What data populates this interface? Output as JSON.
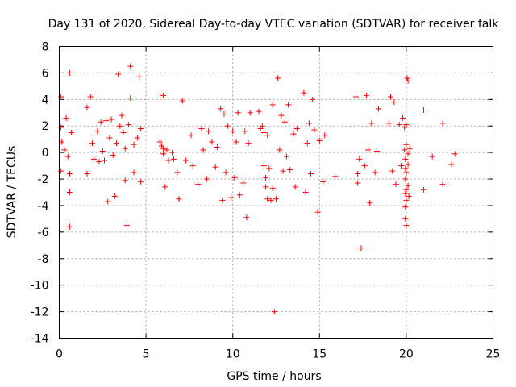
{
  "chart_data": {
    "type": "scatter",
    "title": "Day 131 of 2020, Sidereal Day-to-day VTEC variation (SDTVAR) for receiver falk",
    "xlabel": "GPS time / hours",
    "ylabel": "SDTVAR / TECUs",
    "xlim": [
      0,
      25
    ],
    "ylim": [
      -14,
      8
    ],
    "xticks": [
      0,
      5,
      10,
      15,
      20,
      25
    ],
    "yticks": [
      -14,
      -12,
      -10,
      -8,
      -6,
      -4,
      -2,
      0,
      2,
      4,
      6,
      8
    ],
    "xtick_labels": [
      "0",
      "5",
      "10",
      "15",
      "20",
      "25"
    ],
    "ytick_labels": [
      "-14",
      "-12",
      "-10",
      "-8",
      "-6",
      "-4",
      "-2",
      "0",
      "2",
      "4",
      "6",
      "8"
    ],
    "grid": true,
    "marker": "plus",
    "color": "#ff0000",
    "series": [
      {
        "name": "SDTVAR",
        "points": [
          [
            0.1,
            4.2
          ],
          [
            0.1,
            1.9
          ],
          [
            0.1,
            -1.4
          ],
          [
            0.15,
            0.8
          ],
          [
            0.3,
            0.2
          ],
          [
            0.4,
            2.6
          ],
          [
            0.5,
            -0.3
          ],
          [
            0.6,
            6.0
          ],
          [
            0.6,
            -1.6
          ],
          [
            0.6,
            -3.0
          ],
          [
            0.6,
            -5.6
          ],
          [
            0.7,
            1.5
          ],
          [
            1.6,
            3.4
          ],
          [
            1.6,
            -1.6
          ],
          [
            1.8,
            4.2
          ],
          [
            1.9,
            0.7
          ],
          [
            2.0,
            -0.5
          ],
          [
            2.2,
            1.6
          ],
          [
            2.3,
            -0.7
          ],
          [
            2.4,
            2.3
          ],
          [
            2.5,
            0.1
          ],
          [
            2.6,
            -0.6
          ],
          [
            2.7,
            2.4
          ],
          [
            2.8,
            -3.7
          ],
          [
            2.9,
            1.1
          ],
          [
            3.0,
            2.5
          ],
          [
            3.1,
            -0.2
          ],
          [
            3.2,
            -3.3
          ],
          [
            3.3,
            0.7
          ],
          [
            3.4,
            5.9
          ],
          [
            3.5,
            2.0
          ],
          [
            3.6,
            2.8
          ],
          [
            3.7,
            1.5
          ],
          [
            3.8,
            0.3
          ],
          [
            3.8,
            -2.1
          ],
          [
            3.9,
            -5.5
          ],
          [
            4.0,
            2.1
          ],
          [
            4.1,
            6.5
          ],
          [
            4.1,
            4.1
          ],
          [
            4.3,
            0.6
          ],
          [
            4.3,
            -1.5
          ],
          [
            4.5,
            1.1
          ],
          [
            4.6,
            5.7
          ],
          [
            4.7,
            1.8
          ],
          [
            4.7,
            -2.2
          ],
          [
            5.8,
            0.8
          ],
          [
            5.9,
            0.5
          ],
          [
            6.0,
            0.3
          ],
          [
            6.0,
            -0.1
          ],
          [
            6.0,
            4.3
          ],
          [
            6.1,
            -2.6
          ],
          [
            6.2,
            0.2
          ],
          [
            6.3,
            -0.6
          ],
          [
            6.5,
            0.0
          ],
          [
            6.6,
            -0.5
          ],
          [
            6.8,
            -1.5
          ],
          [
            6.9,
            -3.5
          ],
          [
            7.1,
            3.9
          ],
          [
            7.3,
            -0.6
          ],
          [
            7.6,
            1.3
          ],
          [
            7.7,
            -1.0
          ],
          [
            8.0,
            -2.4
          ],
          [
            8.2,
            1.8
          ],
          [
            8.3,
            0.2
          ],
          [
            8.5,
            -2.0
          ],
          [
            8.6,
            1.6
          ],
          [
            8.8,
            0.8
          ],
          [
            9.0,
            -1.1
          ],
          [
            9.1,
            0.4
          ],
          [
            9.3,
            3.3
          ],
          [
            9.4,
            -3.6
          ],
          [
            9.5,
            2.9
          ],
          [
            9.6,
            -1.5
          ],
          [
            9.7,
            2.0
          ],
          [
            9.9,
            -3.4
          ],
          [
            10.0,
            1.6
          ],
          [
            10.1,
            -1.9
          ],
          [
            10.2,
            0.8
          ],
          [
            10.3,
            3.0
          ],
          [
            10.4,
            -3.2
          ],
          [
            10.6,
            -2.3
          ],
          [
            10.7,
            1.6
          ],
          [
            10.8,
            -4.9
          ],
          [
            10.9,
            0.7
          ],
          [
            11.0,
            3.0
          ],
          [
            11.5,
            3.1
          ],
          [
            11.6,
            1.8
          ],
          [
            11.7,
            2.0
          ],
          [
            11.8,
            1.5
          ],
          [
            11.8,
            -1.0
          ],
          [
            11.9,
            -1.9
          ],
          [
            11.9,
            -2.6
          ],
          [
            12.0,
            1.3
          ],
          [
            12.0,
            -3.5
          ],
          [
            12.1,
            -1.2
          ],
          [
            12.2,
            -3.6
          ],
          [
            12.3,
            -2.7
          ],
          [
            12.3,
            3.6
          ],
          [
            12.4,
            -12.0
          ],
          [
            12.5,
            -3.5
          ],
          [
            12.6,
            5.6
          ],
          [
            12.7,
            0.2
          ],
          [
            12.8,
            2.8
          ],
          [
            12.9,
            -1.4
          ],
          [
            13.0,
            2.3
          ],
          [
            13.1,
            -0.3
          ],
          [
            13.2,
            3.6
          ],
          [
            13.3,
            -1.3
          ],
          [
            13.5,
            1.4
          ],
          [
            13.6,
            -2.6
          ],
          [
            13.7,
            1.8
          ],
          [
            14.1,
            4.5
          ],
          [
            14.2,
            -3.0
          ],
          [
            14.3,
            0.7
          ],
          [
            14.4,
            2.2
          ],
          [
            14.5,
            -1.6
          ],
          [
            14.6,
            4.0
          ],
          [
            14.7,
            1.7
          ],
          [
            14.9,
            -4.5
          ],
          [
            15.0,
            0.9
          ],
          [
            15.2,
            -2.2
          ],
          [
            15.3,
            1.3
          ],
          [
            15.9,
            -1.8
          ],
          [
            17.1,
            4.2
          ],
          [
            17.2,
            -1.6
          ],
          [
            17.2,
            -2.3
          ],
          [
            17.3,
            -0.5
          ],
          [
            17.4,
            -7.2
          ],
          [
            17.6,
            -1.0
          ],
          [
            17.7,
            4.3
          ],
          [
            17.8,
            0.2
          ],
          [
            17.9,
            -3.8
          ],
          [
            18.0,
            2.2
          ],
          [
            18.2,
            -1.5
          ],
          [
            18.3,
            0.1
          ],
          [
            18.4,
            3.3
          ],
          [
            19.0,
            2.2
          ],
          [
            19.1,
            4.2
          ],
          [
            19.2,
            -1.4
          ],
          [
            19.3,
            3.8
          ],
          [
            19.4,
            -2.4
          ],
          [
            19.6,
            2.1
          ],
          [
            19.7,
            -1.0
          ],
          [
            19.8,
            2.6
          ],
          [
            19.9,
            1.9
          ],
          [
            19.9,
            0.2
          ],
          [
            19.95,
            -0.5
          ],
          [
            19.95,
            -1.2
          ],
          [
            19.95,
            -2.0
          ],
          [
            19.95,
            -3.1
          ],
          [
            19.95,
            -4.1
          ],
          [
            19.95,
            -5.0
          ],
          [
            20.0,
            -5.5
          ],
          [
            20.0,
            -3.6
          ],
          [
            20.0,
            -2.8
          ],
          [
            20.0,
            -1.5
          ],
          [
            20.0,
            0.6
          ],
          [
            20.0,
            2.1
          ],
          [
            20.05,
            5.6
          ],
          [
            20.1,
            5.4
          ],
          [
            20.1,
            -0.1
          ],
          [
            20.1,
            -0.9
          ],
          [
            20.1,
            -2.5
          ],
          [
            20.15,
            -3.3
          ],
          [
            20.2,
            0.3
          ],
          [
            21.0,
            3.2
          ],
          [
            21.0,
            -2.8
          ],
          [
            21.5,
            -0.3
          ],
          [
            22.1,
            2.2
          ],
          [
            22.1,
            -2.4
          ],
          [
            22.6,
            -0.9
          ],
          [
            22.8,
            -0.1
          ]
        ]
      }
    ]
  }
}
